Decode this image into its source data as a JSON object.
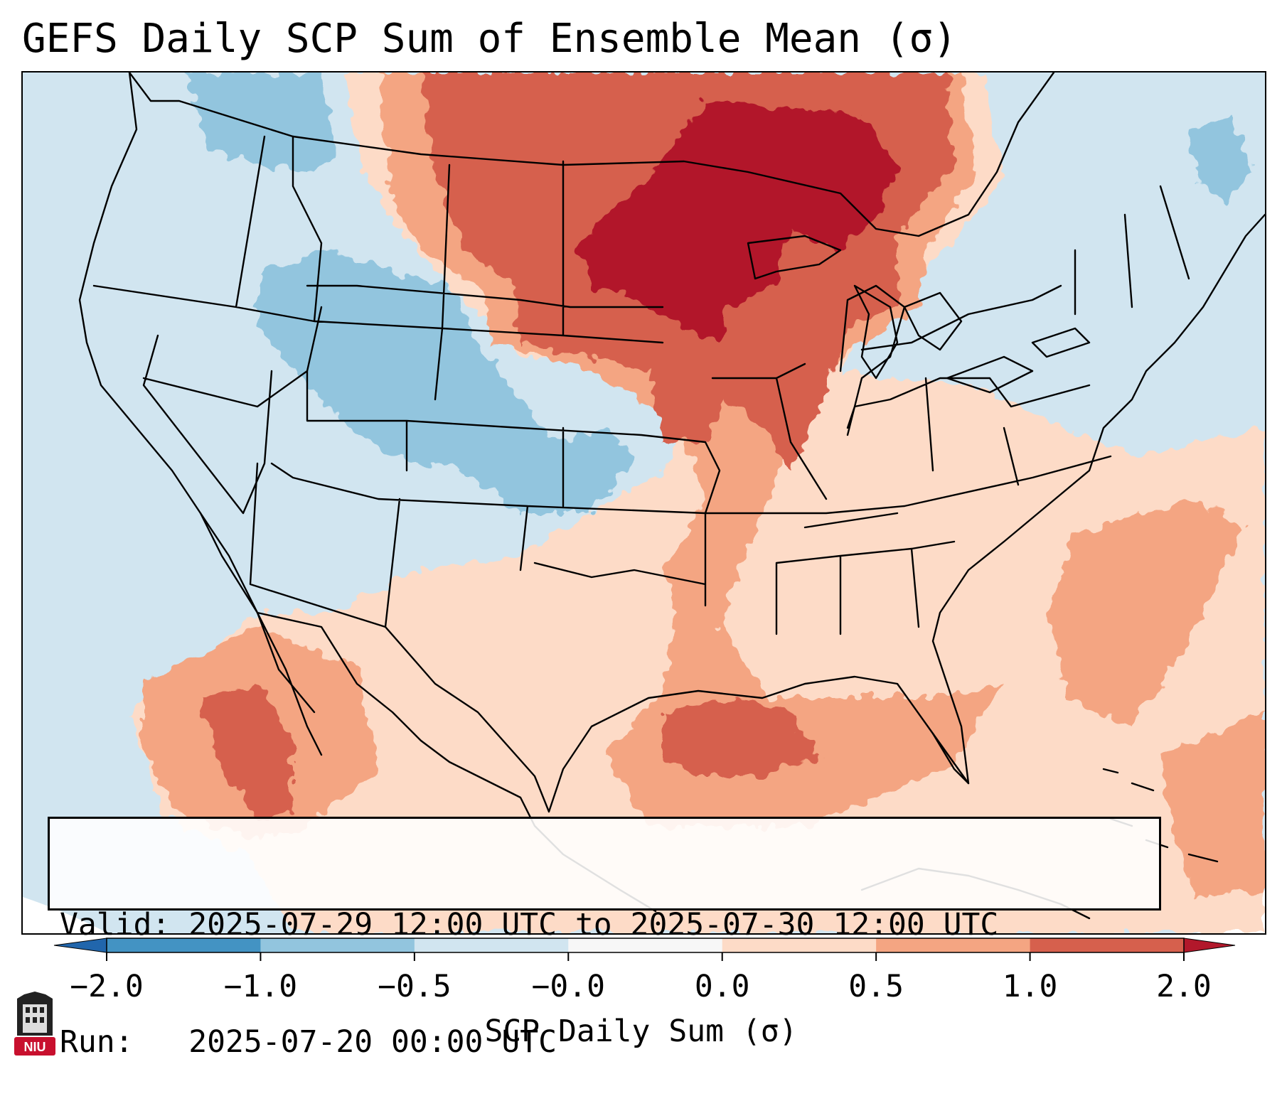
{
  "title": "GEFS Daily SCP Sum of Ensemble Mean (σ)",
  "info": {
    "valid_label": "Valid:",
    "valid_value": "2025-07-29 12:00 UTC to 2025-07-30 12:00 UTC",
    "run_label": "Run:",
    "run_value": "2025-07-20 00:00 UTC"
  },
  "colorbar": {
    "title": "SCP Daily Sum (σ)",
    "tick_labels": [
      "−2.0",
      "−1.0",
      "−0.5",
      "−0.0",
      "0.0",
      "0.5",
      "1.0",
      "2.0"
    ],
    "colors": [
      "#4393c3",
      "#92c5de",
      "#d1e5f0",
      "#f7f7f7",
      "#fddbc7",
      "#f4a582",
      "#d6604d",
      "#b2182b"
    ],
    "under_color": "#2166ac",
    "over_color": "#b2182b"
  },
  "logo": {
    "text": "NIU",
    "color": "#c8102e"
  }
}
